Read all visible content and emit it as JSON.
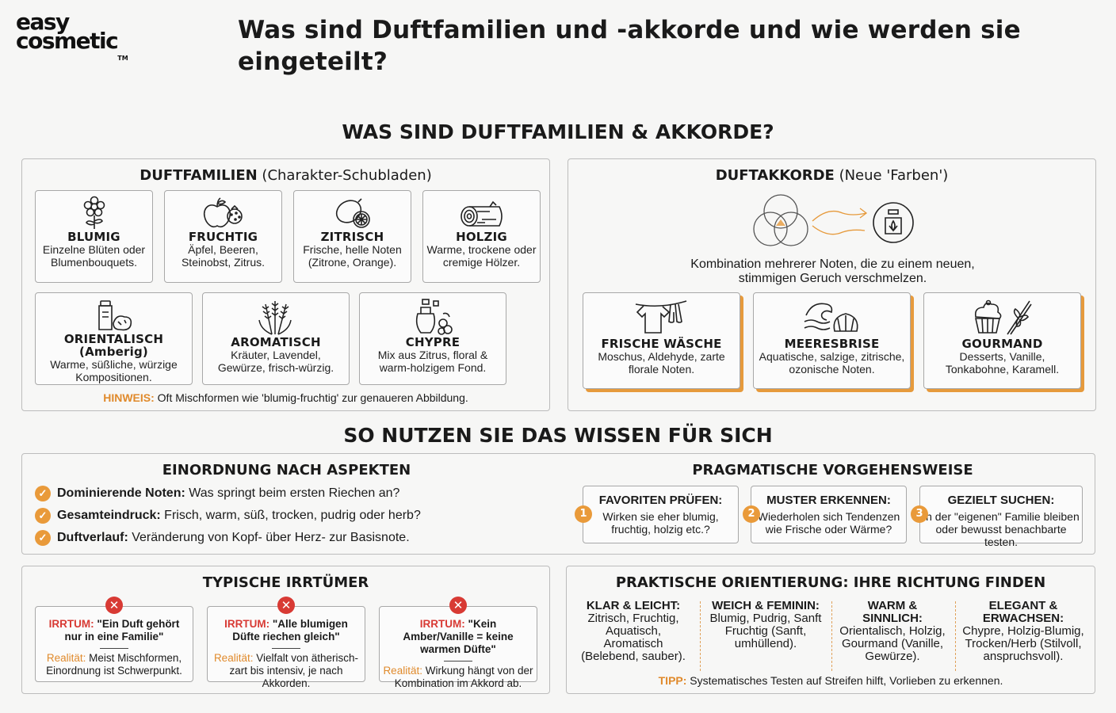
{
  "brand": {
    "line1": "easy",
    "line2": "cosmetic",
    "tm": "TM"
  },
  "page_title": "Was sind Duftfamilien und -akkorde und wie werden sie eingeteilt?",
  "section1_title": "WAS SIND DUFTFAMILIEN & AKKORDE?",
  "families": {
    "title_bold": "DUFTFAMILIEN",
    "title_rest": " (Charakter-Schubladen)",
    "items": [
      {
        "name": "BLUMIG",
        "desc": "Einzelne Blüten oder Blumenbouquets.",
        "icon": "flower-icon"
      },
      {
        "name": "FRUCHTIG",
        "desc": "Äpfel, Beeren, Steinobst, Zitrus.",
        "icon": "fruit-icon"
      },
      {
        "name": "ZITRISCH",
        "desc": "Frische, helle Noten (Zitrone, Orange).",
        "icon": "lemon-icon"
      },
      {
        "name": "HOLZIG",
        "desc": "Warme, trockene oder cremige Hölzer.",
        "icon": "wood-log-icon"
      },
      {
        "name": "ORIENTALISCH (Amberig)",
        "desc": "Warme, süßliche, würzige Kompositionen.",
        "icon": "spice-jar-icon"
      },
      {
        "name": "AROMATISCH",
        "desc": "Kräuter, Lavendel, Gewürze, frisch-würzig.",
        "icon": "lavender-icon"
      },
      {
        "name": "CHYPRE",
        "desc": "Mix aus Zitrus, floral & warm-holzigem Fond.",
        "icon": "perfume-bottle-icon"
      }
    ],
    "hint_label": "HINWEIS:",
    "hint_text": " Oft Mischformen wie 'blumig-fruchtig' zur genaueren Abbildung."
  },
  "accords": {
    "title_bold": "DUFTAKKORDE",
    "title_rest": " (Neue 'Farben')",
    "description": "Kombination mehrerer Noten, die zu einem neuen, stimmigen Geruch verschmelzen.",
    "items": [
      {
        "name": "FRISCHE WÄSCHE",
        "desc": "Moschus, Aldehyde, zarte florale Noten.",
        "icon": "laundry-icon"
      },
      {
        "name": "MEERESBRISE",
        "desc": "Aquatische, salzige, zitrische, ozonische Noten.",
        "icon": "wave-shell-icon"
      },
      {
        "name": "GOURMAND",
        "desc": "Desserts, Vanille, Tonkabohne, Karamell.",
        "icon": "cupcake-vanilla-icon"
      }
    ]
  },
  "section2_title": "SO NUTZEN SIE DAS WISSEN FÜR SICH",
  "aspects": {
    "title": "EINORDNUNG NACH ASPEKTEN",
    "items": [
      {
        "label": "Dominierende Noten:",
        "text": " Was springt beim ersten Riechen an?"
      },
      {
        "label": "Gesamteindruck:",
        "text": " Frisch, warm, süß, trocken, pudrig oder herb?"
      },
      {
        "label": "Duftverlauf:",
        "text": " Veränderung von Kopf- über Herz- zur Basisnote."
      }
    ]
  },
  "pragmatic": {
    "title": "PRAGMATISCHE VORGEHENSWEISE",
    "steps": [
      {
        "num": "1",
        "name": "FAVORITEN PRÜFEN:",
        "desc": "Wirken sie eher blumig, fruchtig, holzig etc.?"
      },
      {
        "num": "2",
        "name": "MUSTER ERKENNEN:",
        "desc": "Wiederholen sich Tendenzen wie Frische oder Wärme?"
      },
      {
        "num": "3",
        "name": "GEZIELT SUCHEN:",
        "desc": "In der \"eigenen\" Familie bleiben oder bewusst benachbarte testen."
      }
    ]
  },
  "myths": {
    "title": "TYPISCHE IRRTÜMER",
    "items": [
      {
        "label": "IRRTUM:",
        "myth": " \"Ein Duft gehört nur in eine Familie\"",
        "reality_label": "Realität:",
        "reality": " Meist Mischformen, Einordnung ist Schwerpunkt."
      },
      {
        "label": "IRRTUM:",
        "myth": " \"Alle blumigen Düfte riechen gleich\"",
        "reality_label": "Realität:",
        "reality": " Vielfalt von ätherisch-zart bis intensiv, je nach Akkorden."
      },
      {
        "label": "IRRTUM:",
        "myth": " \"Kein Amber/Vanille = keine warmen Düfte\"",
        "reality_label": "Realität:",
        "reality": " Wirkung hängt von der Kombination im Akkord ab."
      }
    ]
  },
  "orientation": {
    "title": "PRAKTISCHE ORIENTIERUNG: IHRE RICHTUNG FINDEN",
    "columns": [
      {
        "name": "KLAR & LEICHT:",
        "desc": "Zitrisch, Fruchtig, Aquatisch, Aromatisch (Belebend, sauber)."
      },
      {
        "name": "WEICH & FEMININ:",
        "desc": "Blumig, Pudrig, Sanft Fruchtig (Sanft, umhüllend)."
      },
      {
        "name": "WARM & SINNLICH:",
        "desc": "Orientalisch, Holzig, Gourmand (Vanille, Gewürze)."
      },
      {
        "name": "ELEGANT & ERWACHSEN:",
        "desc": "Chypre, Holzig-Blumig, Trocken/Herb (Stilvoll, anspruchsvoll)."
      }
    ],
    "tip_label": "TIPP:",
    "tip_text": " Systematisches Testen auf Streifen hilft, Vorlieben zu erkennen."
  },
  "colors": {
    "accent": "#e99a3a",
    "error": "#d83a34"
  }
}
